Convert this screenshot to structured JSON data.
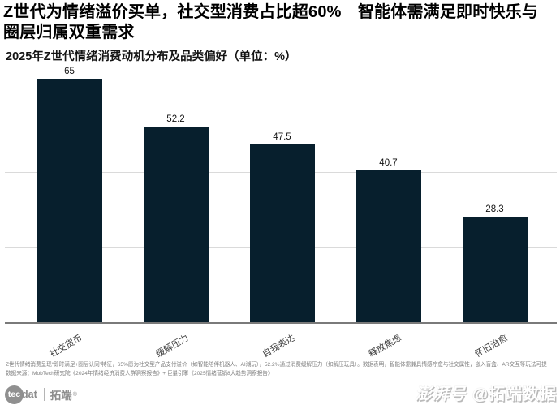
{
  "header": {
    "title": "Z世代为情绪溢价买单，社交型消费占比超60%　智能体需满足即时快乐与圈层归属双重需求",
    "subtitle": "2025年Z世代情绪消费动机分布及品类偏好（单位：%）"
  },
  "chart_data": {
    "type": "bar",
    "title": "2025年Z世代情绪消费动机分布及品类偏好",
    "unit": "%",
    "categories": [
      "社交货币",
      "缓解压力",
      "自我表达",
      "释放焦虑",
      "怀旧治愈"
    ],
    "values": [
      65,
      52.2,
      47.5,
      40.7,
      28.3
    ],
    "value_labels": [
      "65",
      "52.2",
      "47.5",
      "40.7",
      "28.3"
    ],
    "xlabel": "",
    "ylabel": "",
    "ylim": [
      0,
      68.7
    ],
    "gridlines": [
      20,
      40,
      60
    ],
    "grid": "horizontal-only, no y tick labels",
    "legend_position": "none",
    "tick_label_rotation_deg": 30,
    "bar_color": "#071f2d",
    "gridline_color": "#dadada",
    "axis_color": "#7a7a7a"
  },
  "footnote": {
    "line1": "Z世代情绪消费呈现“即时满足+圈层认同”特征，65%愿为社交型产品支付溢价（如智能陪伴机器人、AI潮玩），52.2%通过消费缓解压力（如解压玩具）。数据表明，智能体需兼具情感疗愈与社交属性，嵌入盲盒、AR交互等玩法可提",
    "line2": "数据来源：MobTech研究院《2024年情绪经济消费人群洞察报告》+ 巨量引擎《2025情绪营销8大趋势洞察报告》"
  },
  "branding": {
    "logo_circle_text": "tec",
    "logo_text": "dat",
    "logo_cn": "拓端",
    "logo_reg": "®",
    "logo_color": "#8d8d8d"
  },
  "watermark": {
    "brand": "澎湃号",
    "account": "@拓端数据"
  }
}
